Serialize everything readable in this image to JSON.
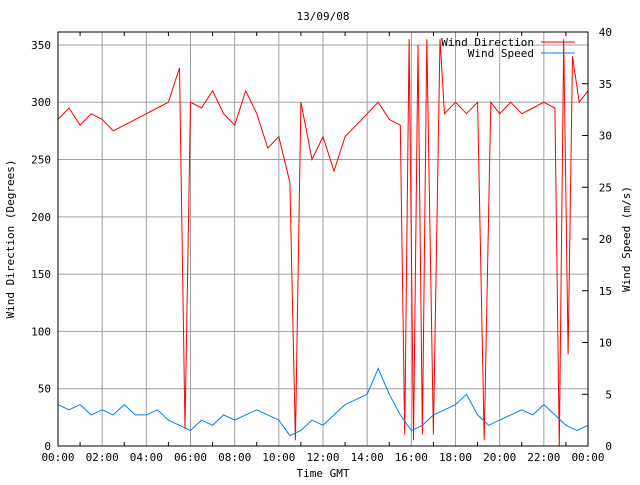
{
  "chart_data": {
    "type": "line",
    "title": "13/09/08",
    "xlabel": "Time GMT",
    "ylabel": "Wind Direction (Degrees)",
    "y2label": "Wind Speed (m/s)",
    "xlim": [
      0,
      24
    ],
    "ylim": [
      0,
      361.3
    ],
    "y2lim": [
      0,
      40
    ],
    "grid": true,
    "legend_position": "top-right",
    "x_ticks": [
      "00:00",
      "02:00",
      "04:00",
      "06:00",
      "08:00",
      "10:00",
      "12:00",
      "14:00",
      "16:00",
      "18:00",
      "20:00",
      "22:00",
      "00:00"
    ],
    "y_ticks": [
      0,
      50,
      100,
      150,
      200,
      250,
      300,
      350
    ],
    "y2_ticks": [
      0,
      5,
      10,
      15,
      20,
      25,
      30,
      35,
      40
    ],
    "series": [
      {
        "name": "Wind Direction",
        "axis": "left",
        "color": "#ff0000",
        "x": [
          0,
          0.5,
          1,
          1.5,
          2,
          2.5,
          3,
          3.5,
          4,
          4.5,
          5,
          5.5,
          5.75,
          6,
          6.5,
          7,
          7.5,
          8,
          8.5,
          9,
          9.5,
          10,
          10.5,
          10.75,
          11,
          11.5,
          12,
          12.5,
          13,
          13.5,
          14,
          14.5,
          15,
          15.5,
          15.7,
          15.9,
          16.1,
          16.3,
          16.5,
          16.7,
          17,
          17.3,
          17.5,
          18,
          18.5,
          19,
          19.3,
          19.6,
          20,
          20.5,
          21,
          21.5,
          22,
          22.5,
          22.7,
          22.9,
          23.1,
          23.3,
          23.6,
          24
        ],
        "values": [
          285,
          295,
          280,
          290,
          285,
          275,
          280,
          285,
          290,
          295,
          300,
          330,
          15,
          300,
          295,
          310,
          290,
          280,
          310,
          290,
          260,
          270,
          230,
          5,
          300,
          250,
          270,
          240,
          270,
          280,
          290,
          300,
          285,
          280,
          10,
          355,
          5,
          350,
          10,
          355,
          10,
          355,
          290,
          300,
          290,
          300,
          5,
          300,
          290,
          300,
          290,
          295,
          300,
          295,
          0,
          355,
          80,
          340,
          300,
          310
        ]
      },
      {
        "name": "Wind Speed",
        "axis": "right",
        "color": "#0080ff",
        "x": [
          0,
          0.5,
          1,
          1.5,
          2,
          2.5,
          3,
          3.5,
          4,
          4.5,
          5,
          5.5,
          6,
          6.5,
          7,
          7.5,
          8,
          8.5,
          9,
          9.5,
          10,
          10.5,
          11,
          11.5,
          12,
          12.5,
          13,
          13.5,
          14,
          14.5,
          15,
          15.5,
          16,
          16.5,
          17,
          17.5,
          18,
          18.5,
          19,
          19.5,
          20,
          20.5,
          21,
          21.5,
          22,
          22.5,
          23,
          23.5,
          24
        ],
        "values": [
          4,
          3.5,
          4,
          3,
          3.5,
          3,
          4,
          3,
          3,
          3.5,
          2.5,
          2,
          1.5,
          2.5,
          2,
          3,
          2.5,
          3,
          3.5,
          3,
          2.5,
          1,
          1.5,
          2.5,
          2,
          3,
          4,
          4.5,
          5,
          7.5,
          5,
          3,
          1.5,
          2,
          3,
          3.5,
          4,
          5,
          3,
          2,
          2.5,
          3,
          3.5,
          3,
          4,
          3,
          2,
          1.5,
          2
        ]
      }
    ]
  }
}
